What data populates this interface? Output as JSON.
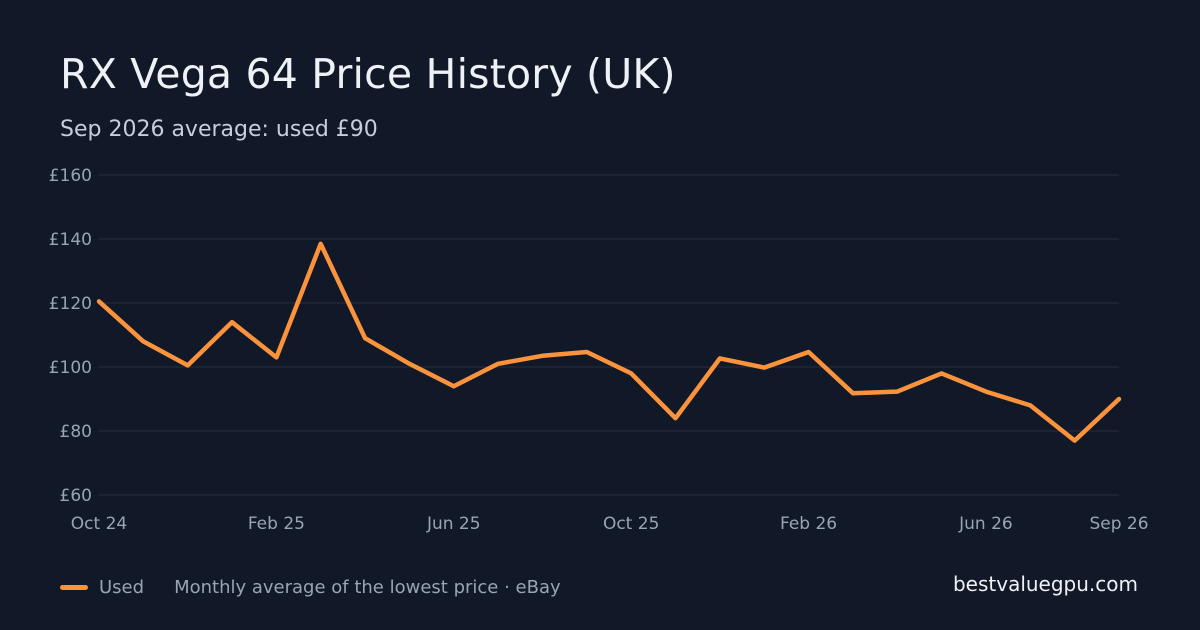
{
  "header": {
    "title": "RX Vega 64 Price History (UK)",
    "subtitle": "Sep 2026 average: used £90"
  },
  "legend": {
    "series_label": "Used",
    "note": "Monthly average of the lowest price · eBay"
  },
  "brand": "bestvaluegpu.com",
  "colors": {
    "background": "#111827",
    "gridline": "#273142",
    "axis_text": "#9aa4b2",
    "series_used": "#fb923c"
  },
  "chart_data": {
    "type": "line",
    "title": "RX Vega 64 Price History (UK)",
    "xlabel": "",
    "ylabel": "",
    "grid": true,
    "legend_position": "bottom-left",
    "ylim": [
      60,
      160
    ],
    "y_ticks": [
      60,
      80,
      100,
      120,
      140,
      160
    ],
    "y_tick_labels": [
      "£60",
      "£80",
      "£100",
      "£120",
      "£140",
      "£160"
    ],
    "x": [
      "2024-10",
      "2024-11",
      "2024-12",
      "2025-01",
      "2025-02",
      "2025-03",
      "2025-04",
      "2025-05",
      "2025-06",
      "2025-07",
      "2025-08",
      "2025-09",
      "2025-10",
      "2025-11",
      "2025-12",
      "2026-01",
      "2026-02",
      "2026-03",
      "2026-04",
      "2026-05",
      "2026-06",
      "2026-07",
      "2026-08",
      "2026-09"
    ],
    "x_ticks": [
      "2024-10",
      "2025-02",
      "2025-06",
      "2025-10",
      "2026-02",
      "2026-06",
      "2026-09"
    ],
    "x_tick_labels": [
      "Oct 24",
      "Feb 25",
      "Jun 25",
      "Oct 25",
      "Feb 26",
      "Jun 26",
      "Sep 26"
    ],
    "series": [
      {
        "name": "Used",
        "values": [
          120.5,
          108,
          100.5,
          114,
          103,
          138.5,
          109,
          101,
          94,
          101,
          103.5,
          104.7,
          98,
          84,
          102.7,
          99.8,
          104.7,
          91.8,
          92.3,
          98,
          92.3,
          88,
          77,
          90
        ]
      }
    ]
  }
}
